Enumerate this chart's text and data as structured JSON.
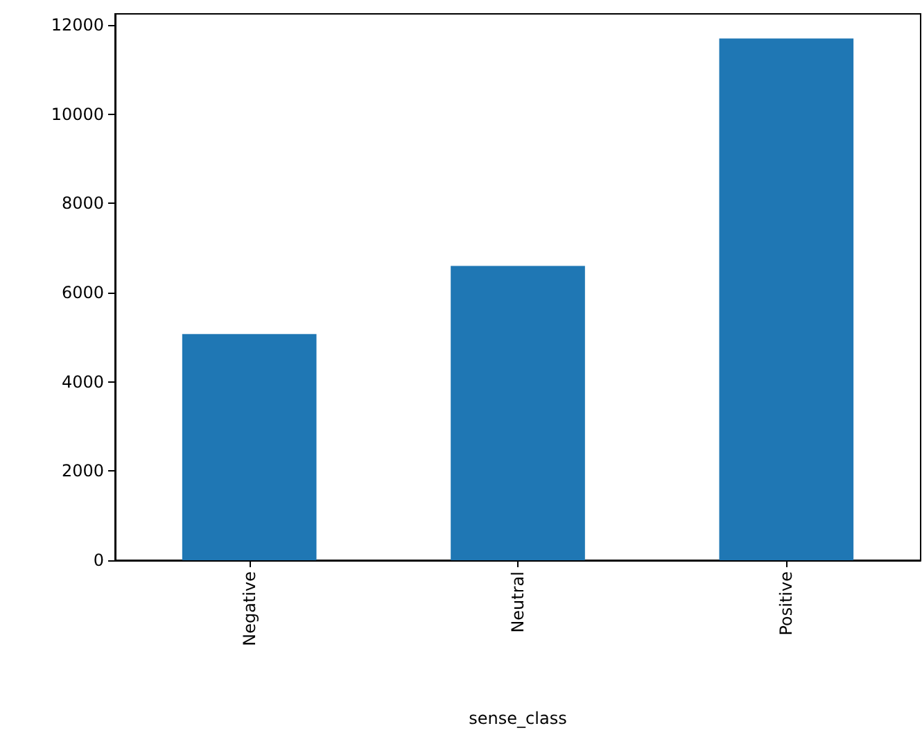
{
  "chart_data": {
    "type": "bar",
    "xlabel": "sense_class",
    "categories": [
      "Negative",
      "Neutral",
      "Positive"
    ],
    "values": [
      5070,
      6600,
      11700
    ],
    "color": "#1f77b4",
    "ylim": [
      0,
      12250
    ],
    "yticks": [
      0,
      2000,
      4000,
      6000,
      8000,
      10000,
      12000
    ],
    "grid": false
  }
}
